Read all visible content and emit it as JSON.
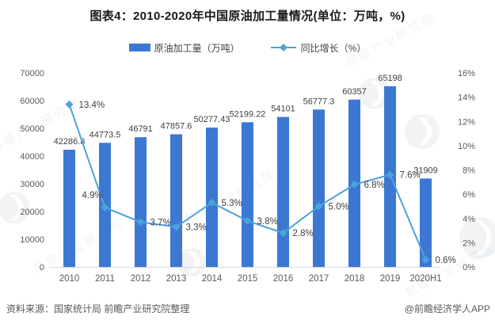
{
  "footer": {
    "source": "资料来源：国家统计局 前瞻产业研究院整理",
    "credit": "@前瞻经济学人APP"
  },
  "watermark": {
    "text": "前瞻产业研究院"
  },
  "colors": {
    "bar": "#3c78d2",
    "line": "#4ba3dc",
    "title": "#1a1a1a",
    "axis_text": "#595959",
    "label_text": "#3f3f3f",
    "axis_line": "#d9d9d9",
    "footer_text": "#595959"
  },
  "chart_data": {
    "type": "bar+line",
    "title": "图表4：2010-2020年中国原油加工量情况(单位：万吨，%)",
    "categories": [
      "2010",
      "2011",
      "2012",
      "2013",
      "2014",
      "2015",
      "2016",
      "2017",
      "2018",
      "2019",
      "2020H1"
    ],
    "series": [
      {
        "name": "原油加工量（万吨）",
        "type": "bar",
        "axis": "left",
        "values": [
          42286.8,
          44773.5,
          46791,
          47857.6,
          50277.43,
          52199.22,
          54101,
          56777.3,
          60357,
          65198,
          31909
        ],
        "labels": [
          "42286.8",
          "44773.5",
          "46791",
          "47857.6",
          "50277.43",
          "52199.22",
          "54101",
          "56777.3",
          "60357",
          "65198",
          "31909"
        ]
      },
      {
        "name": "同比增长（%）",
        "type": "line",
        "axis": "right",
        "values": [
          13.4,
          4.9,
          3.7,
          3.3,
          5.3,
          3.8,
          2.8,
          5.0,
          6.8,
          7.6,
          0.6
        ],
        "labels": [
          "13.4%",
          "4.9%",
          "3.7%",
          "3.3%",
          "5.3%",
          "3.8%",
          "2.8%",
          "5.0%",
          "6.8%",
          "7.6%",
          "0.6%"
        ]
      }
    ],
    "left_axis": {
      "min": 0,
      "max": 70000,
      "step": 10000
    },
    "right_axis": {
      "min": 0,
      "max": 16,
      "step": 2,
      "suffix": "%"
    },
    "grid": false,
    "legend_position": "top"
  }
}
